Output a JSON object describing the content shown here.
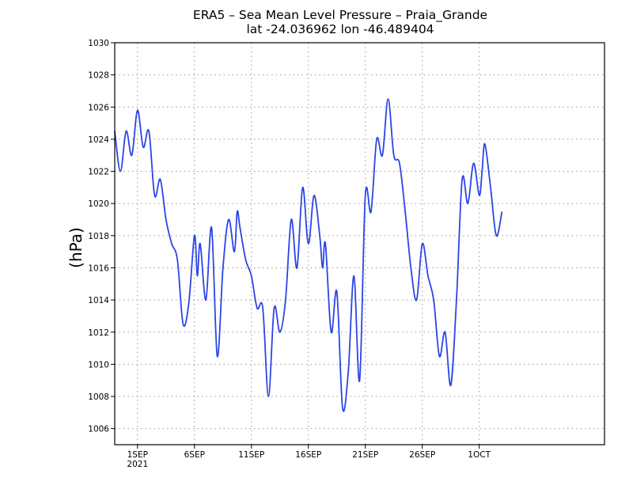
{
  "chart_data": {
    "type": "line",
    "title": "ERA5 – Sea Mean Level Pressure – Praia_Grande",
    "subtitle": "lat -24.036962 lon -46.489404",
    "ylabel": "(hPa)",
    "xlabel": "",
    "ylim": [
      1005,
      1030
    ],
    "y_ticks": [
      1006,
      1008,
      1010,
      1012,
      1014,
      1016,
      1018,
      1020,
      1022,
      1024,
      1026,
      1028,
      1030
    ],
    "x_range_days": [
      0,
      43
    ],
    "x_ticks": [
      {
        "day": 2,
        "label": "1SEP",
        "sublabel": "2021"
      },
      {
        "day": 7,
        "label": "6SEP"
      },
      {
        "day": 12,
        "label": "11SEP"
      },
      {
        "day": 17,
        "label": "16SEP"
      },
      {
        "day": 22,
        "label": "21SEP"
      },
      {
        "day": 27,
        "label": "26SEP"
      },
      {
        "day": 32,
        "label": "1OCT"
      }
    ],
    "grid": true,
    "series": [
      {
        "name": "Sea Mean Level Pressure",
        "color": "#2b45e6",
        "x_days": [
          0.0,
          0.5,
          1.0,
          1.5,
          2.0,
          2.5,
          3.0,
          3.5,
          4.0,
          4.5,
          5.0,
          5.5,
          6.0,
          6.5,
          7.0,
          7.25,
          7.5,
          8.0,
          8.5,
          9.0,
          9.5,
          10.0,
          10.5,
          10.75,
          11.0,
          11.5,
          12.0,
          12.5,
          13.0,
          13.5,
          14.0,
          14.5,
          15.0,
          15.5,
          16.0,
          16.5,
          17.0,
          17.5,
          18.0,
          18.25,
          18.5,
          19.0,
          19.5,
          20.0,
          20.5,
          21.0,
          21.5,
          22.0,
          22.5,
          23.0,
          23.5,
          24.0,
          24.5,
          25.0,
          25.5,
          26.0,
          26.5,
          27.0,
          27.5,
          28.0,
          28.5,
          29.0,
          29.5,
          30.0,
          30.5,
          31.0,
          31.5,
          32.0,
          32.25,
          32.5,
          33.0,
          33.5,
          34.0
        ],
        "values": [
          1024.5,
          1022.0,
          1024.5,
          1023.0,
          1025.8,
          1023.5,
          1024.5,
          1020.5,
          1021.5,
          1019.0,
          1017.5,
          1016.5,
          1012.5,
          1013.8,
          1018.0,
          1015.5,
          1017.5,
          1014.0,
          1018.5,
          1010.5,
          1016.0,
          1019.0,
          1017.0,
          1019.5,
          1018.5,
          1016.5,
          1015.5,
          1013.5,
          1013.5,
          1008.0,
          1013.5,
          1012.0,
          1014.0,
          1019.0,
          1016.0,
          1021.0,
          1017.5,
          1020.5,
          1018.0,
          1016.0,
          1017.5,
          1012.0,
          1014.5,
          1007.3,
          1009.5,
          1015.5,
          1009.0,
          1020.5,
          1019.5,
          1024.0,
          1023.0,
          1026.5,
          1023.0,
          1022.5,
          1019.5,
          1016.0,
          1014.0,
          1017.5,
          1015.5,
          1014.0,
          1010.5,
          1012.0,
          1008.7,
          1014.0,
          1021.5,
          1020.0,
          1022.5,
          1020.5,
          1022.0,
          1023.7,
          1021.0,
          1018.0,
          1019.5
        ]
      }
    ]
  }
}
